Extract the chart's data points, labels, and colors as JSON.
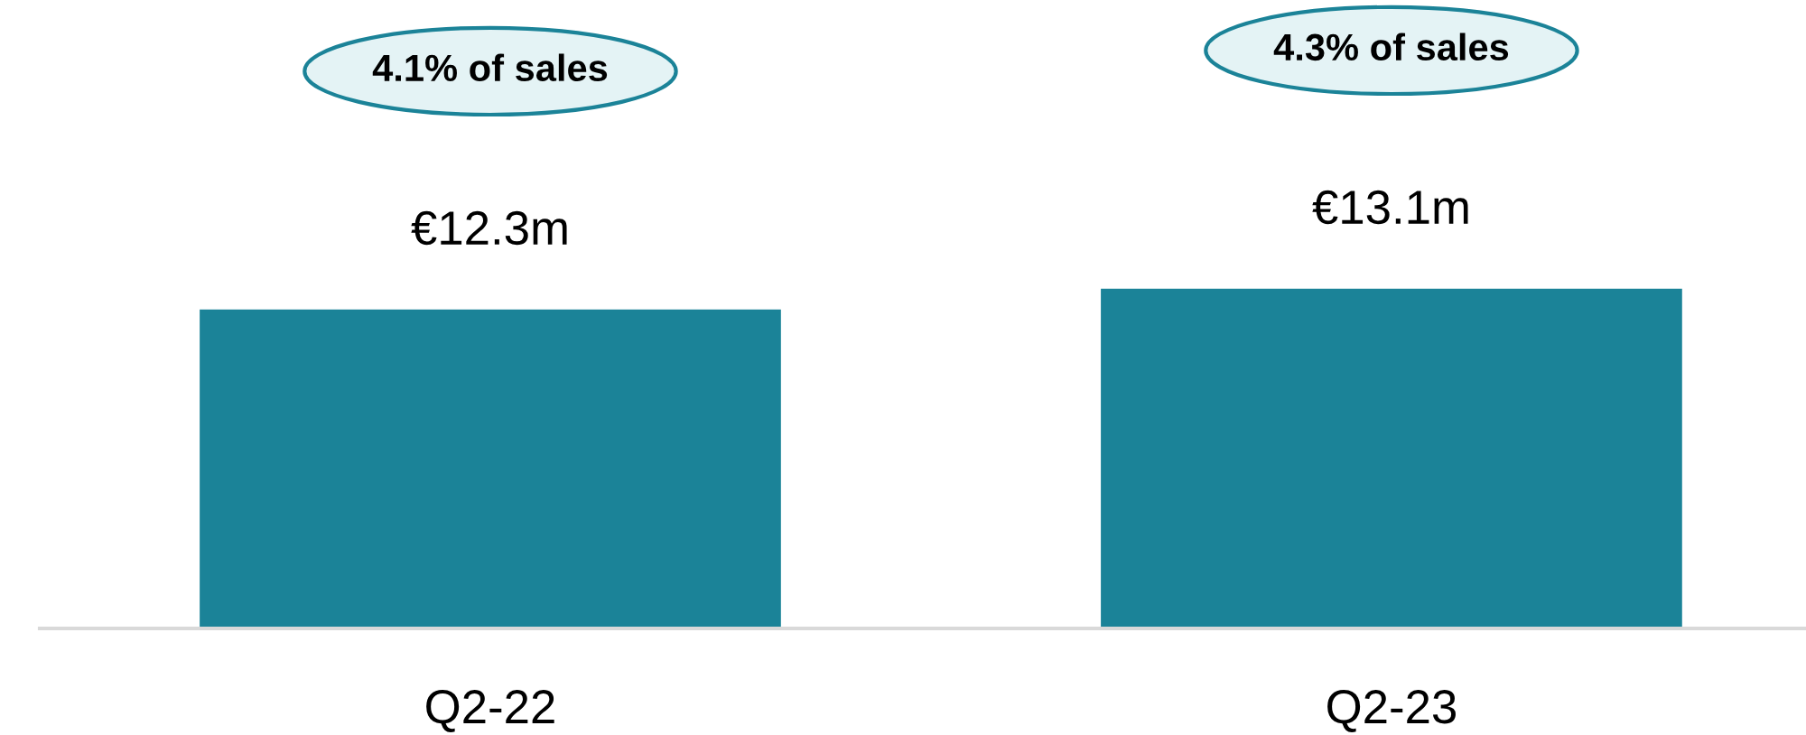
{
  "chart_data": {
    "type": "bar",
    "categories": [
      "Q2-22",
      "Q2-23"
    ],
    "values": [
      12.3,
      13.1
    ],
    "value_labels": [
      "€12.3m",
      "€13.1m"
    ],
    "color": "#1b8398",
    "annotations": [
      "4.1% of sales",
      "4.3% of sales"
    ],
    "tick_labels": "x",
    "grid": false,
    "legend": false
  }
}
